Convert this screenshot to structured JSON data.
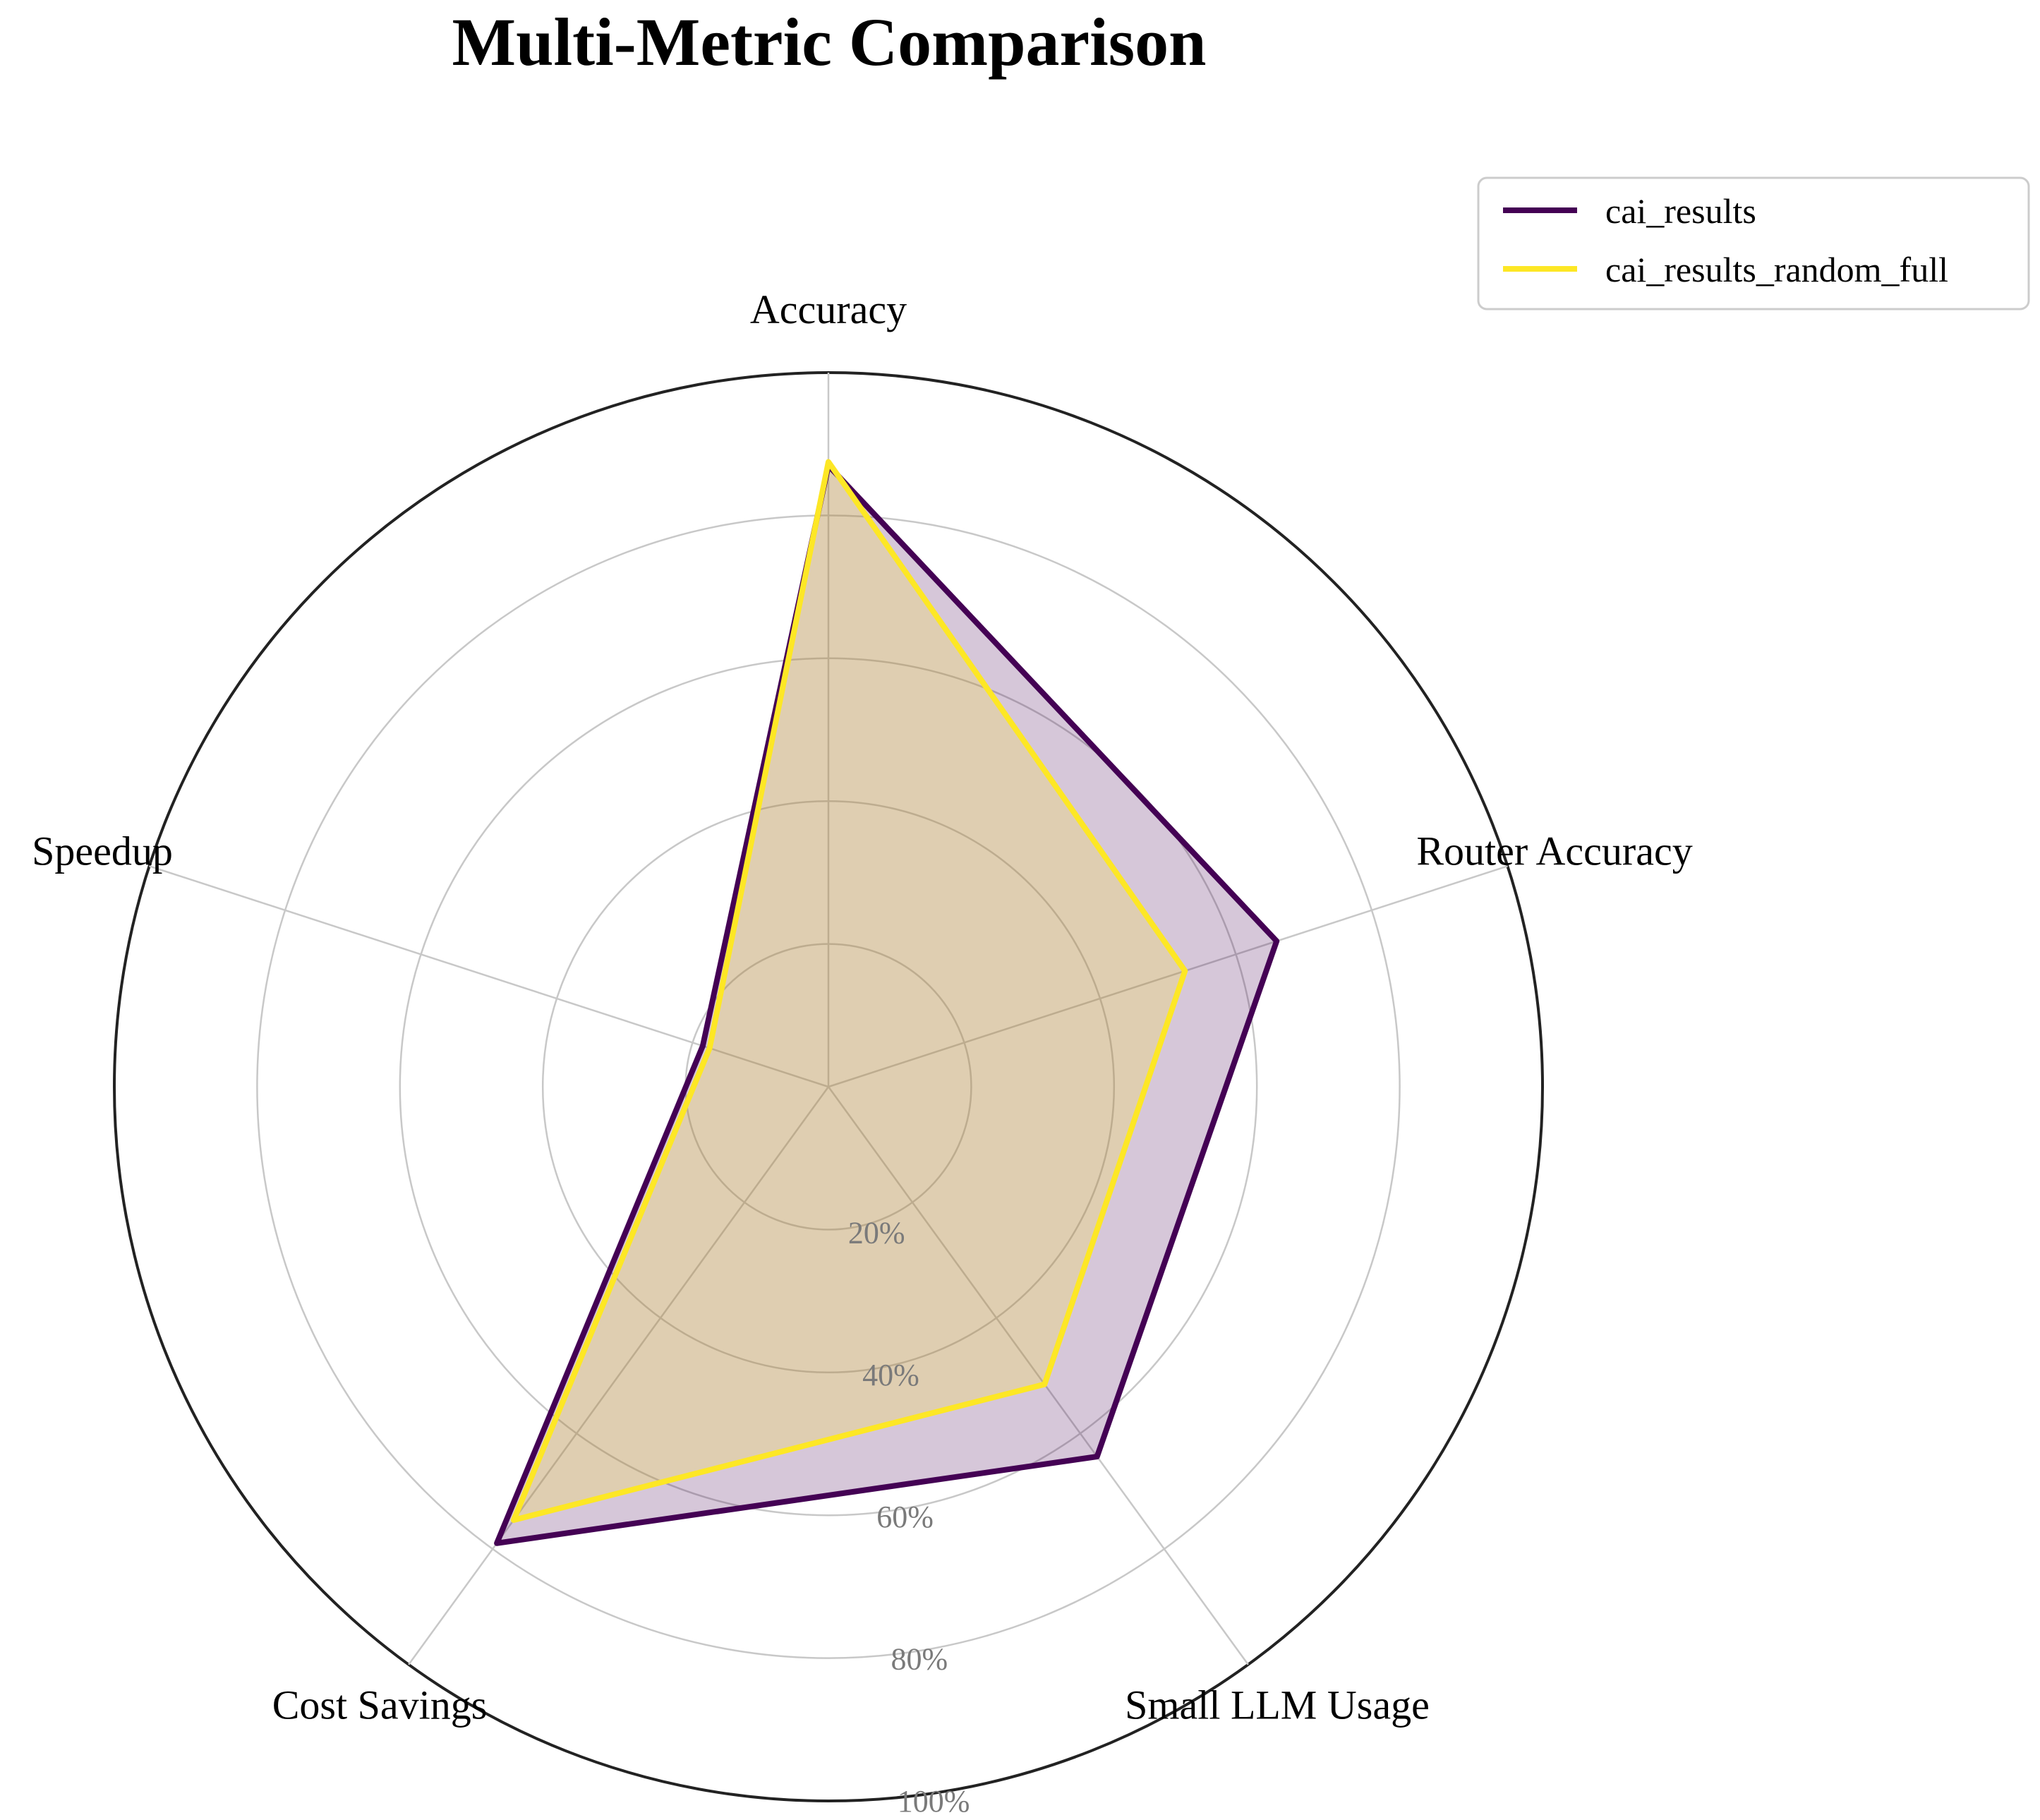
{
  "chart_data": {
    "type": "radar",
    "title": "Multi-Metric Comparison",
    "categories": [
      "Accuracy",
      "Router Accuracy",
      "Small LLM Usage",
      "Cost Savings",
      "Speedup"
    ],
    "radial_ticks": [
      "20%",
      "40%",
      "60%",
      "80%",
      "100%"
    ],
    "rlim": [
      0,
      100
    ],
    "grid": true,
    "legend_position": "top-right",
    "series": [
      {
        "name": "cai_results",
        "values": [
          87,
          66,
          64,
          79,
          18.5
        ],
        "color": "#440154"
      },
      {
        "name": "cai_results_random_full",
        "values": [
          87.5,
          52.5,
          51.5,
          75,
          17.5
        ],
        "color": "#fde725"
      }
    ]
  }
}
